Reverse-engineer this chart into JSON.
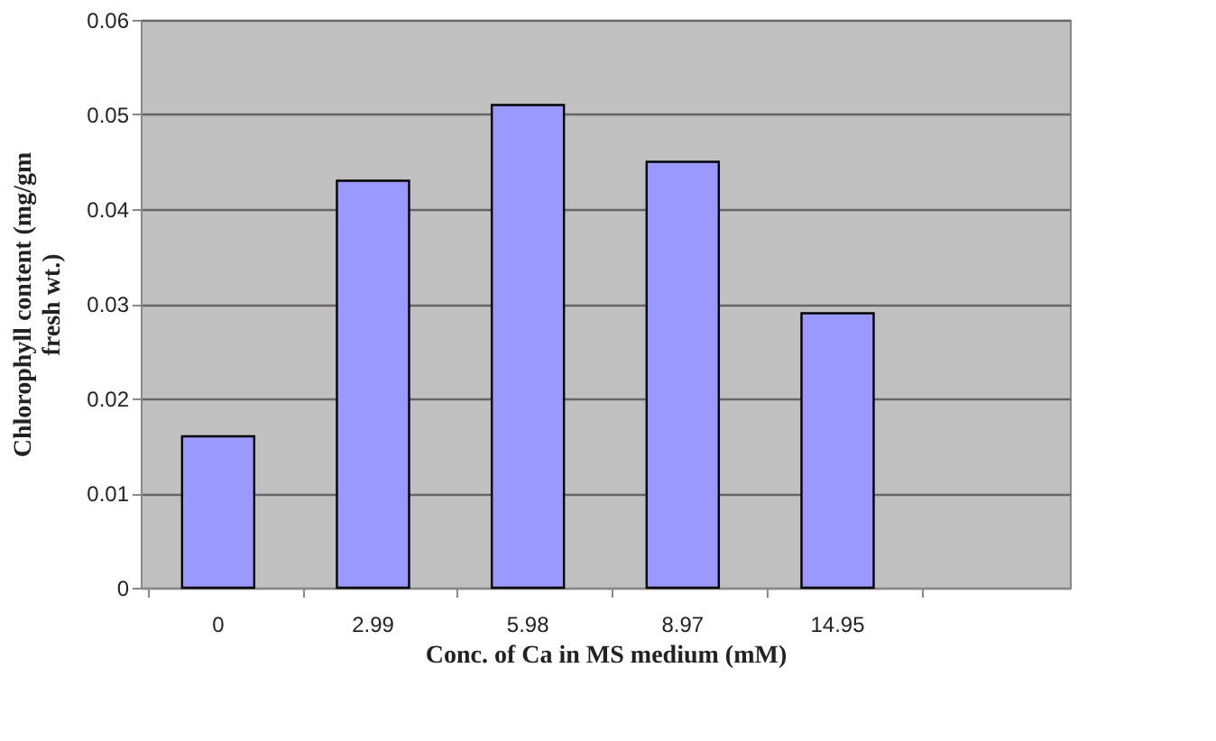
{
  "chart_data": {
    "type": "bar",
    "categories": [
      "0",
      "2.99",
      "5.98",
      "8.97",
      "14.95",
      null
    ],
    "values": [
      0.016,
      0.043,
      0.051,
      0.045,
      0.029,
      null
    ],
    "color": "#9999ff",
    "xlabel": "Conc. of Ca in MS medium (mM)",
    "ylabel": "Chlorophyll content (mg/gm fresh wt.)",
    "ylim": [
      0,
      0.06
    ],
    "yticks": [
      0,
      0.01,
      0.02,
      0.03,
      0.04,
      0.05,
      0.06
    ],
    "grid": "y"
  }
}
